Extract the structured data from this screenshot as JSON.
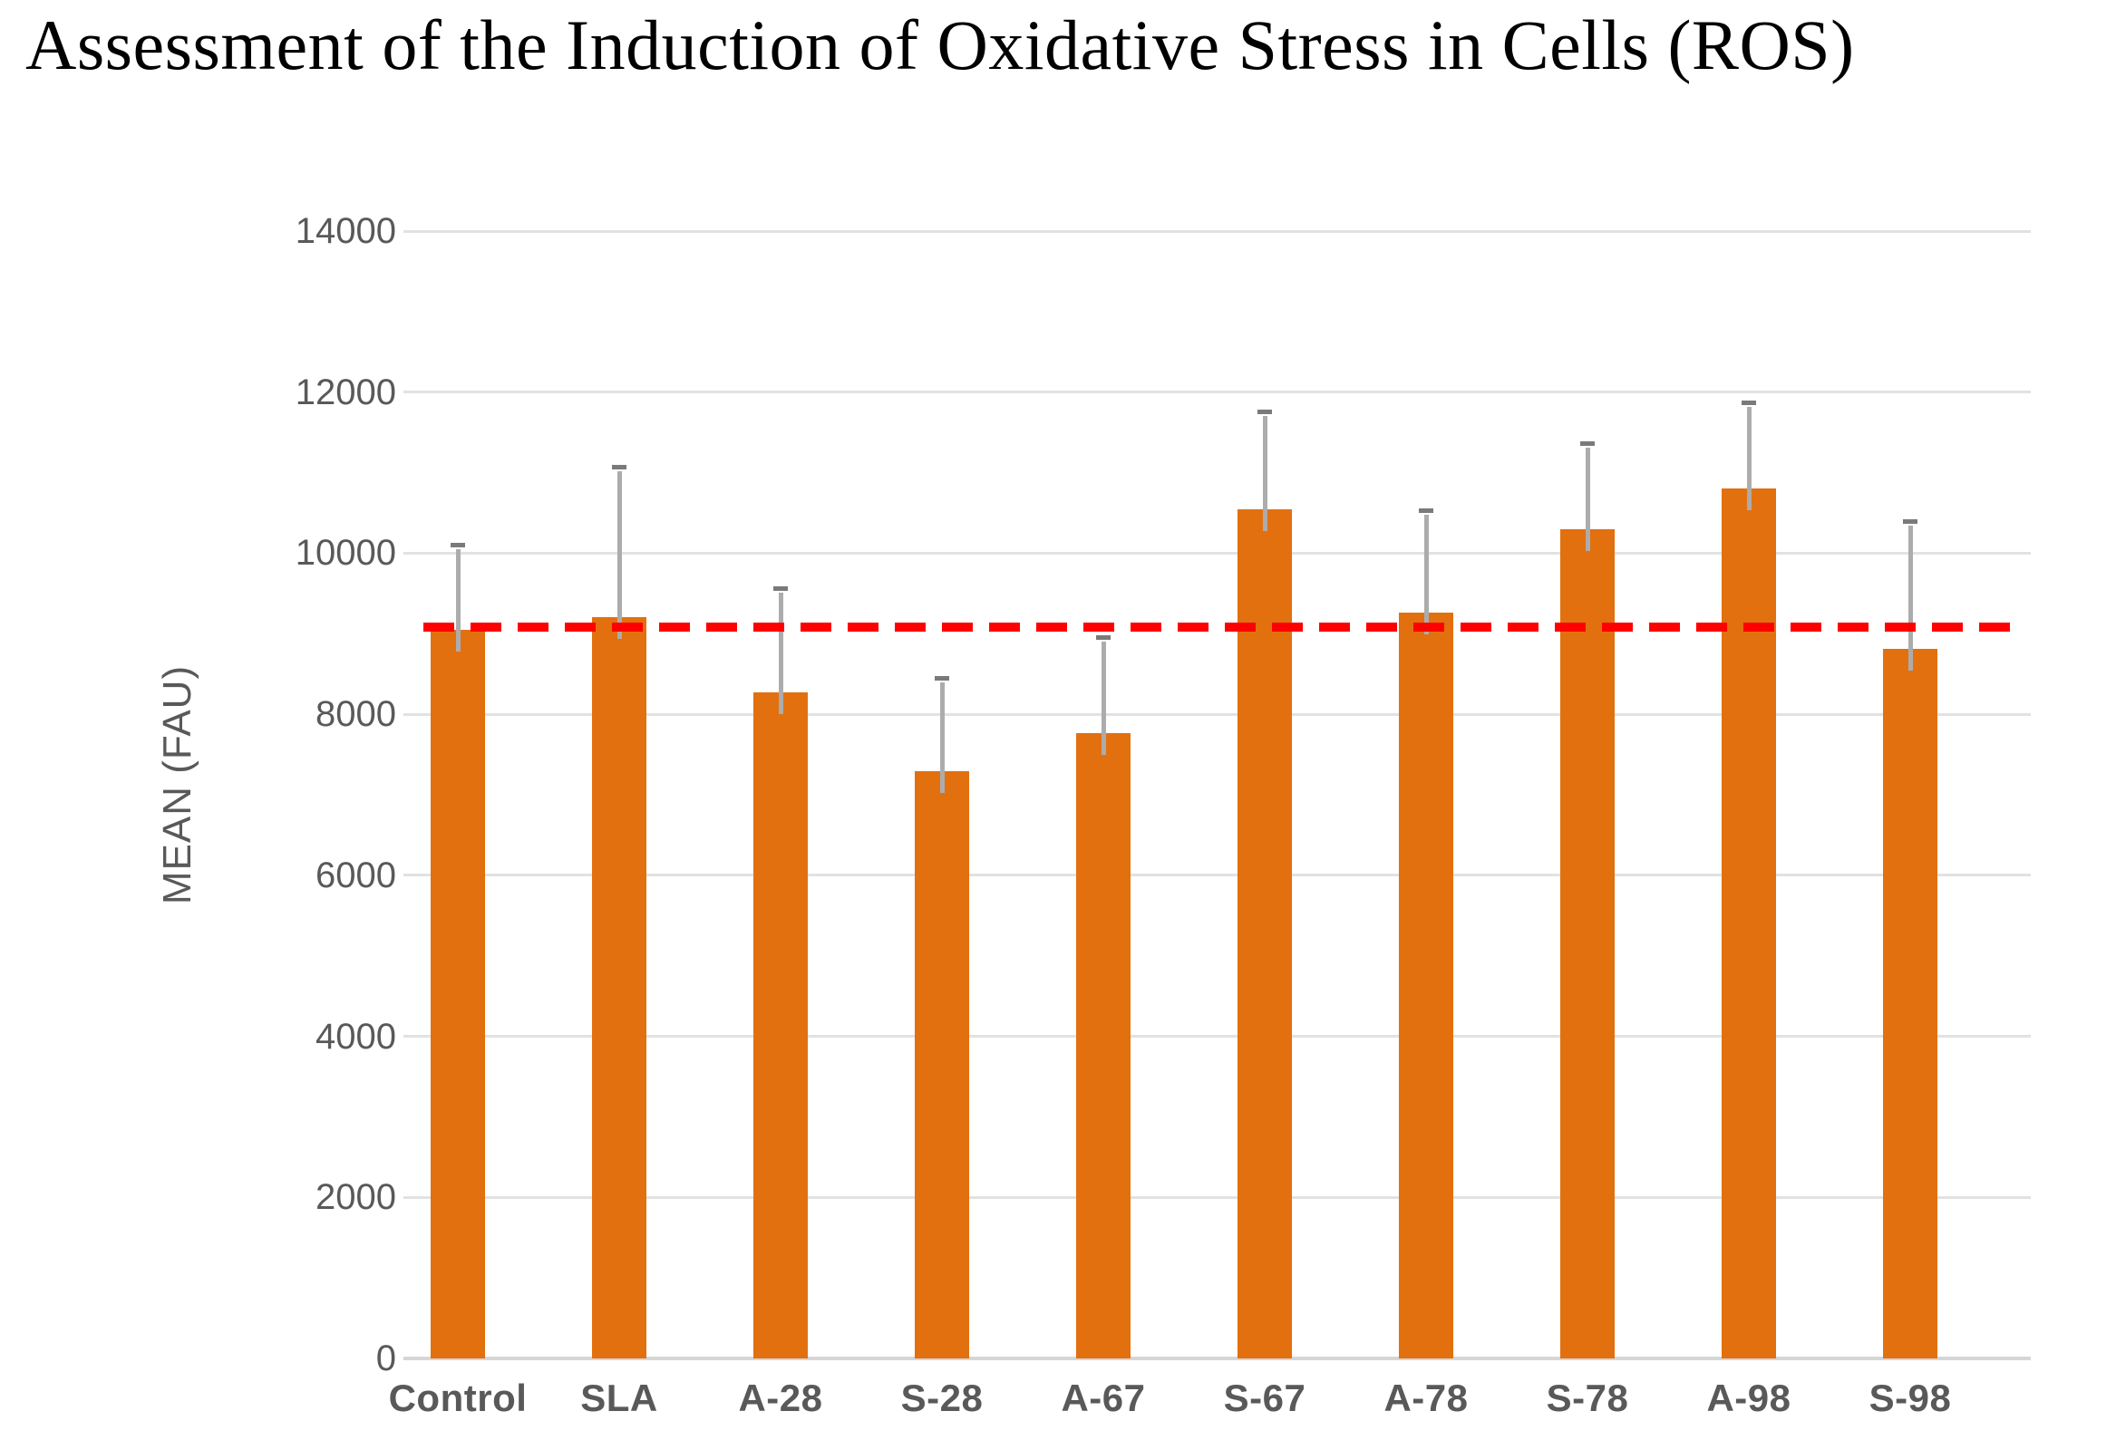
{
  "title": "Assessment of the Induction of Oxidative Stress in Cells (ROS)",
  "chart_data": {
    "type": "bar",
    "title": "Assessment of the Induction of Oxidative Stress in Cells (ROS)",
    "xlabel": "",
    "ylabel": "MEAN (FAU)",
    "categories": [
      "Control",
      "SLA",
      "A-28",
      "S-28",
      "A-67",
      "S-67",
      "A-78",
      "S-78",
      "A-98",
      "S-98"
    ],
    "series": [
      {
        "name": "MEAN (FAU)",
        "values": [
          9050,
          9210,
          8270,
          7290,
          7770,
          10550,
          9260,
          10300,
          10800,
          8810
        ]
      }
    ],
    "error_bars_upper_top": [
      10090,
      11060,
      9550,
      8440,
      8950,
      11750,
      10520,
      11360,
      11860,
      10390
    ],
    "reference_line": {
      "value": 9080,
      "style": "dashed",
      "color": "#ff0000"
    },
    "ylim": [
      0,
      14000
    ],
    "yticks": [
      0,
      2000,
      4000,
      6000,
      8000,
      10000,
      12000,
      14000
    ],
    "grid": true,
    "legend_position": "none"
  },
  "colors": {
    "background": "#ffffff",
    "title_text": "#000000",
    "tick_text": "#595959",
    "gridline": "#e2e2e2",
    "axis_line": "#d6d6d6",
    "bar": "#e2700f",
    "error_whisker": "#acacac",
    "error_cap": "#7a7a7a",
    "reference_line": "#ff0000"
  }
}
